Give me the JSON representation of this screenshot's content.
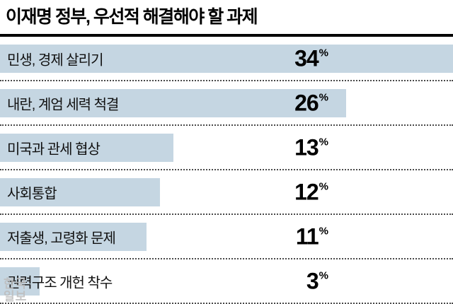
{
  "title": "이재명 정부, 우선적 해결해야 할 과제",
  "watermark": "한국일보",
  "colors": {
    "bar": "#c5d6e2",
    "title_rule": "#000000",
    "separator": "#4a4a4a",
    "watermark_gray": "#bdbdbd"
  },
  "chart_data": {
    "type": "bar",
    "orientation": "horizontal",
    "title": "이재명 정부, 우선적 해결해야 할 과제",
    "categories": [
      "민생, 경제 살리기",
      "내란, 계엄 세력 척결",
      "미국과 관세 협상",
      "사회통합",
      "저출생, 고령화 문제",
      "권력구조 개헌 착수"
    ],
    "values": [
      34,
      26,
      13,
      12,
      11,
      3
    ],
    "unit": "%",
    "value_scale_max": 34,
    "legend": "none",
    "grid": "dotted-row-separators",
    "source_mark": "한국일보"
  }
}
